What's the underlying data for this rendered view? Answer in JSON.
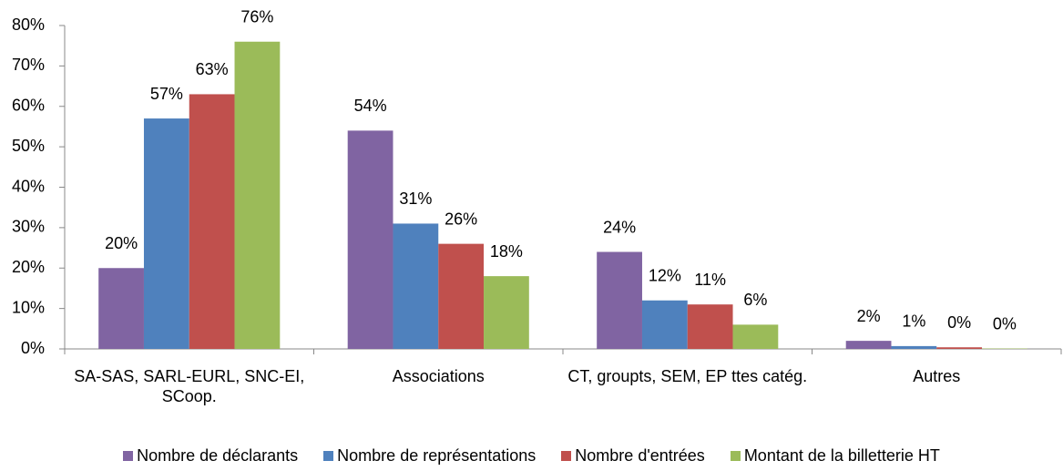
{
  "chart_data": {
    "type": "bar",
    "categories": [
      "SA-SAS, SARL-EURL, SNC-EI, SCoop.",
      "Associations",
      "CT, groupts, SEM, EP ttes catég.",
      "Autres"
    ],
    "series": [
      {
        "name": "Nombre de déclarants",
        "color": "#8064a2",
        "values": [
          20,
          54,
          24,
          2
        ],
        "value_labels": [
          "20%",
          "54%",
          "24%",
          "2%"
        ]
      },
      {
        "name": "Nombre de représentations",
        "color": "#4f81bd",
        "values": [
          57,
          31,
          12,
          0.7
        ],
        "value_labels": [
          "57%",
          "31%",
          "12%",
          "1%"
        ]
      },
      {
        "name": "Nombre d'entrées",
        "color": "#c0504d",
        "values": [
          63,
          26,
          11,
          0.4
        ],
        "value_labels": [
          "63%",
          "26%",
          "11%",
          "0%"
        ]
      },
      {
        "name": "Montant de la billetterie HT",
        "color": "#9bbb59",
        "values": [
          76,
          18,
          6,
          0.1
        ],
        "value_labels": [
          "76%",
          "18%",
          "6%",
          "0%"
        ]
      }
    ],
    "ylim": [
      0,
      80
    ],
    "yticks": [
      {
        "value": 0,
        "label": "0%"
      },
      {
        "value": 10,
        "label": "10%"
      },
      {
        "value": 20,
        "label": "20%"
      },
      {
        "value": 30,
        "label": "30%"
      },
      {
        "value": 40,
        "label": "40%"
      },
      {
        "value": 50,
        "label": "50%"
      },
      {
        "value": 60,
        "label": "60%"
      },
      {
        "value": 70,
        "label": "70%"
      },
      {
        "value": 80,
        "label": "80%"
      }
    ],
    "grid": false,
    "legend": "bottom"
  }
}
